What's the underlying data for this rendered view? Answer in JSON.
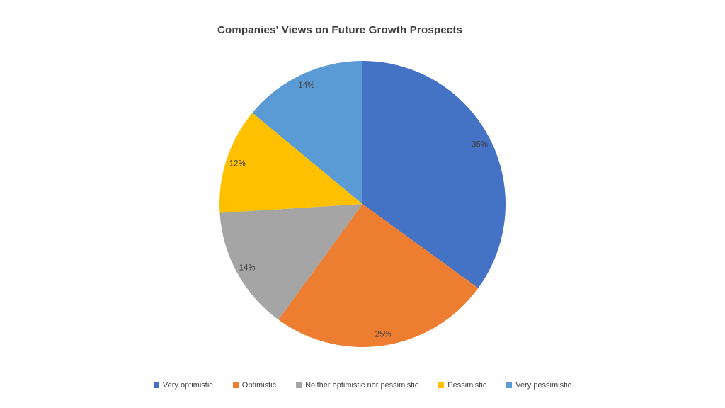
{
  "chart_data": {
    "type": "pie",
    "title": "Companies' Views on Future Growth Prospects",
    "categories": [
      "Very optimistic",
      "Optimistic",
      "Neither optimistic nor pessimistic",
      "Pessimistic",
      "Very pessimistic"
    ],
    "values": [
      35,
      25,
      14,
      12,
      14
    ],
    "data_labels": [
      "35%",
      "25%",
      "14%",
      "12%",
      "14%"
    ],
    "colors": [
      "#4472C4",
      "#ED7D31",
      "#A5A5A5",
      "#FFC000",
      "#5B9BD5"
    ],
    "start_angle_deg": 0,
    "direction": "clockwise",
    "legend_position": "bottom",
    "label_color": "#404040",
    "title_color": "#3f3f3f",
    "label_radius_ratio": 0.92
  }
}
